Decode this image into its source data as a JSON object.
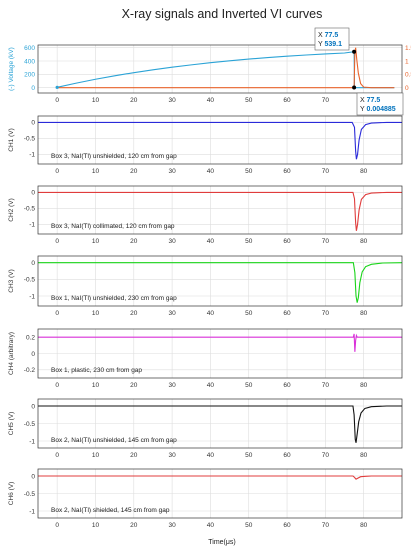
{
  "figure": {
    "title": "X-ray signals and Inverted VI curves",
    "xlabel": "Time(μs)"
  },
  "colors": {
    "voltage": "#2ba3d6",
    "current": "#e8632b",
    "ch1": "#2a2ad9",
    "ch2": "#e03c3c",
    "ch3": "#19d419",
    "ch4": "#d930d9",
    "ch5": "#111111",
    "ch6": "#e03c3c",
    "axis": "#333333",
    "grid": "#dddddd",
    "datatip_blue": "#0072bd"
  },
  "chart_data": [
    {
      "type": "line",
      "panel": "VI",
      "x_ticks": [
        0,
        10,
        20,
        30,
        40,
        50,
        60,
        70,
        80
      ],
      "xlim": [
        -5,
        90
      ],
      "ylabel": "(-) Voltage (kV)",
      "ylim": [
        -80,
        640
      ],
      "y_ticks": [
        0,
        200,
        400,
        600
      ],
      "ylabel_right": "(-) Current (kA)",
      "ylim_right": [
        -0.2,
        1.6
      ],
      "y_ticks_right": [
        "0",
        "0.5",
        "1",
        "1.5"
      ],
      "grid": true,
      "series": [
        {
          "axis": "left",
          "color_key": "voltage",
          "x": [
            0,
            5,
            10,
            15,
            20,
            25,
            30,
            35,
            40,
            45,
            50,
            55,
            60,
            65,
            70,
            75,
            77.5,
            77.6,
            78,
            79,
            82,
            88
          ],
          "y": [
            5,
            68,
            126,
            178,
            225,
            268,
            307,
            342,
            374,
            403,
            429,
            452,
            472,
            490,
            506,
            520,
            539,
            20,
            0,
            0,
            0,
            0
          ]
        },
        {
          "axis": "right",
          "color_key": "current",
          "x": [
            0,
            20,
            40,
            60,
            77.3,
            77.5,
            77.7,
            77.9,
            78.2,
            78.6,
            79.2,
            80,
            82,
            88
          ],
          "y": [
            0,
            0,
            0,
            0,
            0,
            0.01,
            1.3,
            1.5,
            1.05,
            0.55,
            0.15,
            0.02,
            0,
            0
          ]
        }
      ],
      "datatips": [
        {
          "x_label": "X",
          "x_value": "77.5",
          "y_label": "Y",
          "y_value": "539.1"
        },
        {
          "x_label": "X",
          "x_value": "77.5",
          "y_label": "Y",
          "y_value": "0.004885"
        }
      ]
    },
    {
      "type": "line",
      "panel": "CH1",
      "ylabel": "CH1 (V)",
      "ylim": [
        -1.3,
        0.2
      ],
      "y_ticks": [
        "-1",
        "-0.5",
        "0"
      ],
      "annotation": "Box 3, NaI(Tl) unshielded, 120 cm from gap",
      "color_key": "ch1",
      "x": [
        -5,
        -2,
        0,
        20,
        40,
        60,
        77,
        77.6,
        77.9,
        78.1,
        78.4,
        78.8,
        79.4,
        80.5,
        82,
        86,
        90
      ],
      "y": [
        0,
        0,
        0,
        0,
        0,
        0,
        0,
        -0.15,
        -0.9,
        -1.15,
        -1.0,
        -0.55,
        -0.22,
        -0.07,
        -0.02,
        0,
        0
      ]
    },
    {
      "type": "line",
      "panel": "CH2",
      "ylabel": "CH2 (V)",
      "ylim": [
        -1.3,
        0.2
      ],
      "y_ticks": [
        "-1",
        "-0.5",
        "0"
      ],
      "annotation": "Box 3, NaI(Tl) collimated, 120 cm from gap",
      "color_key": "ch2",
      "x": [
        -5,
        0,
        20,
        40,
        60,
        77.2,
        77.6,
        77.9,
        78.1,
        78.4,
        78.8,
        79.4,
        80.5,
        82,
        86,
        90
      ],
      "y": [
        0,
        0,
        0,
        0,
        0,
        0,
        -0.2,
        -0.95,
        -1.2,
        -1.0,
        -0.55,
        -0.22,
        -0.07,
        -0.02,
        0,
        0
      ]
    },
    {
      "type": "line",
      "panel": "CH3",
      "ylabel": "CH3 (V)",
      "ylim": [
        -1.3,
        0.2
      ],
      "y_ticks": [
        "-1",
        "-0.5",
        "0"
      ],
      "annotation": "Box 1, NaI(Tl) unshielded, 230 cm from gap",
      "color_key": "ch3",
      "x": [
        -5,
        0,
        20,
        40,
        60,
        77.3,
        77.7,
        78.0,
        78.3,
        78.6,
        79.0,
        79.6,
        80.5,
        82,
        85,
        90
      ],
      "y": [
        0,
        0,
        0,
        0,
        0,
        0,
        -0.3,
        -1.0,
        -1.2,
        -1.05,
        -0.6,
        -0.28,
        -0.12,
        -0.05,
        -0.01,
        0
      ]
    },
    {
      "type": "line",
      "panel": "CH4",
      "ylabel": "CH4 (arbitrary)",
      "ylim": [
        -0.3,
        0.3
      ],
      "y_ticks": [
        "-0.2",
        "0",
        "0.2"
      ],
      "annotation": "Box 1, plastic, 230 cm from gap",
      "color_key": "ch4",
      "x": [
        -5,
        0,
        20,
        40,
        60,
        77.3,
        77.5,
        77.7,
        77.9,
        78.1,
        78.3,
        79,
        82,
        90
      ],
      "y": [
        0.2,
        0.2,
        0.2,
        0.2,
        0.2,
        0.2,
        0.24,
        0.02,
        0.16,
        0.22,
        0.2,
        0.2,
        0.2,
        0.2
      ]
    },
    {
      "type": "line",
      "panel": "CH5",
      "ylabel": "CH5 (V)",
      "ylim": [
        -1.2,
        0.2
      ],
      "y_ticks": [
        "-1",
        "-0.5",
        "0"
      ],
      "annotation": "Box 2, NaI(Tl) unshielded, 145 cm from gap",
      "color_key": "ch5",
      "x": [
        -5,
        0,
        20,
        40,
        60,
        77.2,
        77.5,
        77.8,
        78.0,
        78.3,
        78.7,
        79.3,
        80.3,
        82,
        86,
        90
      ],
      "y": [
        0,
        0,
        0,
        0,
        0,
        0,
        -0.25,
        -0.95,
        -1.05,
        -0.8,
        -0.45,
        -0.2,
        -0.07,
        -0.02,
        0,
        0
      ]
    },
    {
      "type": "line",
      "panel": "CH6",
      "ylabel": "CH6 (V)",
      "ylim": [
        -1.2,
        0.2
      ],
      "y_ticks": [
        "-1",
        "-0.5",
        "0"
      ],
      "annotation": "Box 2, NaI(Tl) shielded, 145 cm from gap",
      "color_key": "ch6",
      "x": [
        -5,
        0,
        20,
        40,
        60,
        77.2,
        77.6,
        78.0,
        78.5,
        79.2,
        80.5,
        82,
        90
      ],
      "y": [
        0,
        0,
        0,
        0,
        0,
        0,
        -0.04,
        -0.09,
        -0.06,
        -0.02,
        -0.01,
        0,
        0
      ]
    }
  ]
}
